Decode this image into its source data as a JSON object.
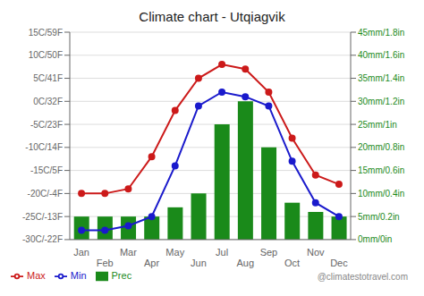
{
  "chart_data": {
    "type": "bar",
    "title": "Climate chart - Utqiagvik",
    "categories": [
      "Jan",
      "Feb",
      "Mar",
      "Apr",
      "May",
      "Jun",
      "Jul",
      "Aug",
      "Sep",
      "Oct",
      "Nov",
      "Dec"
    ],
    "series": [
      {
        "name": "Prec",
        "type": "bar",
        "axis": "y2",
        "color": "#1a8a1a",
        "values": [
          5,
          5,
          5,
          5,
          7,
          10,
          25,
          30,
          20,
          8,
          6,
          5
        ]
      },
      {
        "name": "Min",
        "type": "line",
        "marker": "circle",
        "color": "#1a1acc",
        "values": [
          -28,
          -28,
          -27,
          -25,
          -14,
          -1,
          2,
          1,
          -1,
          -13,
          -22,
          -25
        ]
      },
      {
        "name": "Max",
        "type": "line",
        "marker": "circle",
        "color": "#cc1a1a",
        "values": [
          -20,
          -20,
          -19,
          -12,
          -2,
          5,
          8,
          7,
          2,
          -8,
          -16,
          -18
        ]
      }
    ],
    "ylim": [
      -30,
      15
    ],
    "yticks": [
      {
        "value": -30,
        "label": "-30C/-22F"
      },
      {
        "value": -25,
        "label": "-25C/-13F"
      },
      {
        "value": -20,
        "label": "-20C/-4F"
      },
      {
        "value": -15,
        "label": "-15C/5F"
      },
      {
        "value": -10,
        "label": "-10C/14F"
      },
      {
        "value": -5,
        "label": "-5C/23F"
      },
      {
        "value": 0,
        "label": "0C/32F"
      },
      {
        "value": 5,
        "label": "5C/41F"
      },
      {
        "value": 10,
        "label": "10C/50F"
      },
      {
        "value": 15,
        "label": "15C/59F"
      }
    ],
    "y2lim": [
      0,
      45
    ],
    "y2ticks": [
      {
        "value": 0,
        "label": "0mm/0in"
      },
      {
        "value": 5,
        "label": "5mm/0.2in"
      },
      {
        "value": 10,
        "label": "10mm/0.4in"
      },
      {
        "value": 15,
        "label": "15mm/0.6in"
      },
      {
        "value": 20,
        "label": "20mm/0.8in"
      },
      {
        "value": 25,
        "label": "25mm/1in"
      },
      {
        "value": 30,
        "label": "30mm/1.2in"
      },
      {
        "value": 35,
        "label": "35mm/1.4in"
      },
      {
        "value": 40,
        "label": "40mm/1.6in"
      },
      {
        "value": 45,
        "label": "45mm/1.8in"
      }
    ],
    "grid": true,
    "legend": "lower left",
    "annotations": [
      "@climatestotravel.com"
    ]
  }
}
